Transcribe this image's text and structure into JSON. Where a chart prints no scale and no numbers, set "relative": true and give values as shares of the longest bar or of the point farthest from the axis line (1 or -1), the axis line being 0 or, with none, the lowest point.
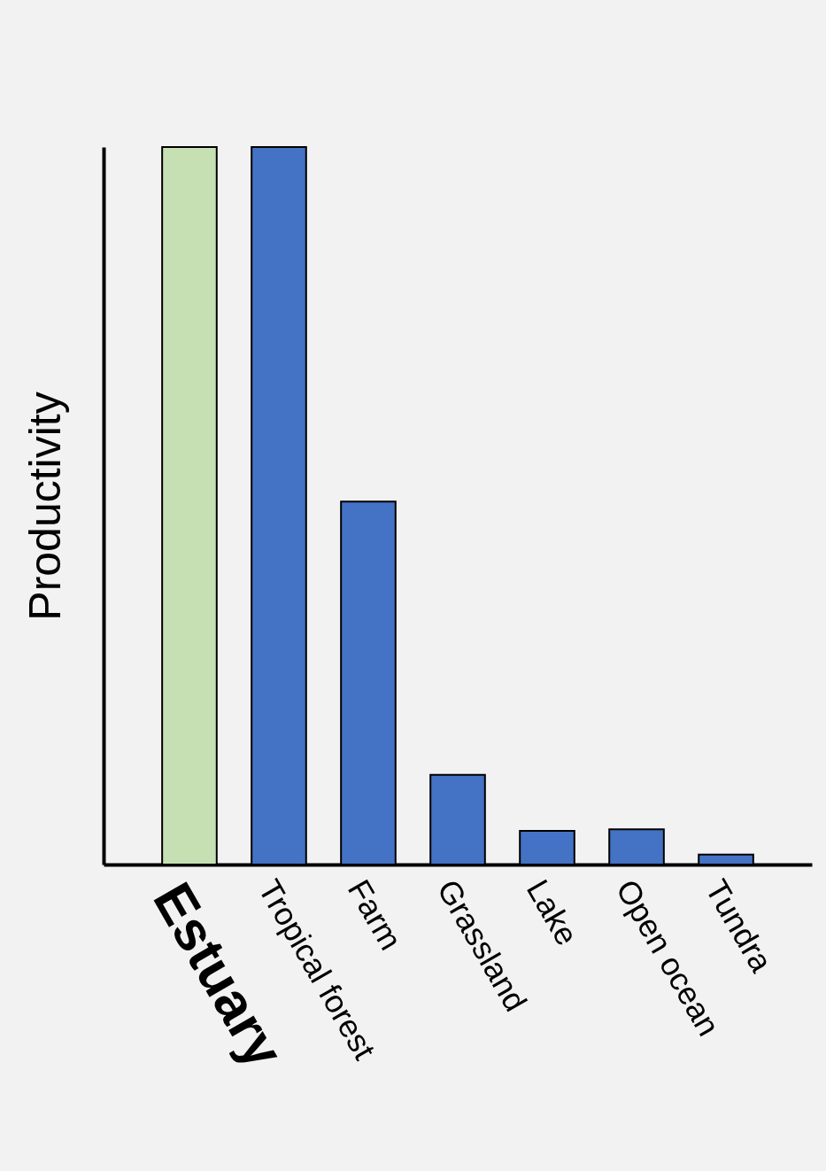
{
  "chart_data": {
    "type": "bar",
    "ylabel": "Productivity",
    "relative": true,
    "categories": [
      "Estuary",
      "Tropical forest",
      "Farm",
      "Grassland",
      "Lake",
      "Open ocean",
      "Tundra"
    ],
    "values": [
      1,
      1,
      0.506,
      0.125,
      0.047,
      0.049,
      0.014
    ],
    "colors": [
      "#c6e0b4",
      "#4472c4",
      "#4472c4",
      "#4472c4",
      "#4472c4",
      "#4472c4",
      "#4472c4"
    ]
  }
}
